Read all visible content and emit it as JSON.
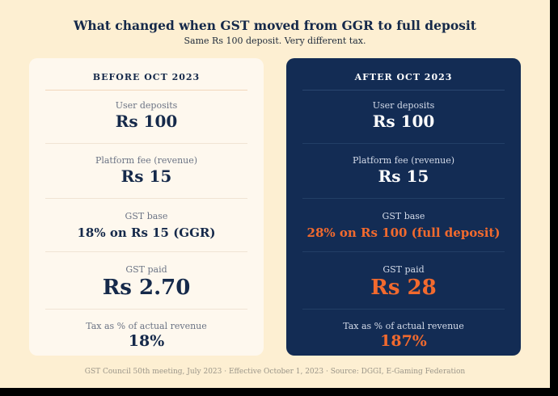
{
  "title": "What changed when GST moved from GGR to full deposit",
  "subtitle": "Same Rs 100 deposit. Very different tax.",
  "before": {
    "header": "BEFORE OCT 2023",
    "rows": [
      {
        "label": "User deposits",
        "value": "Rs 100"
      },
      {
        "label": "Platform fee (revenue)",
        "value": "Rs 15"
      },
      {
        "label": "GST base",
        "value": "18% on Rs 15 (GGR)"
      },
      {
        "label": "GST paid",
        "value": "Rs 2.70"
      },
      {
        "label": "Tax as % of actual revenue",
        "value": "18%"
      }
    ]
  },
  "after": {
    "header": "AFTER OCT 2023",
    "rows": [
      {
        "label": "User deposits",
        "value": "Rs 100"
      },
      {
        "label": "Platform fee (revenue)",
        "value": "Rs 15"
      },
      {
        "label": "GST base",
        "value": "28% on Rs 100 (full deposit)"
      },
      {
        "label": "GST paid",
        "value": "Rs 28"
      },
      {
        "label": "Tax as % of actual revenue",
        "value": "187%"
      }
    ]
  },
  "colors": {
    "background": "#fdefd2",
    "before_card": "#fef8ee",
    "after_card": "#132c54",
    "navy_text": "#15294a",
    "highlight": "#f26a2e"
  },
  "footer": "GST Council 50th meeting, July 2023 · Effective October 1, 2023 · Source: DGGI, E-Gaming Federation"
}
